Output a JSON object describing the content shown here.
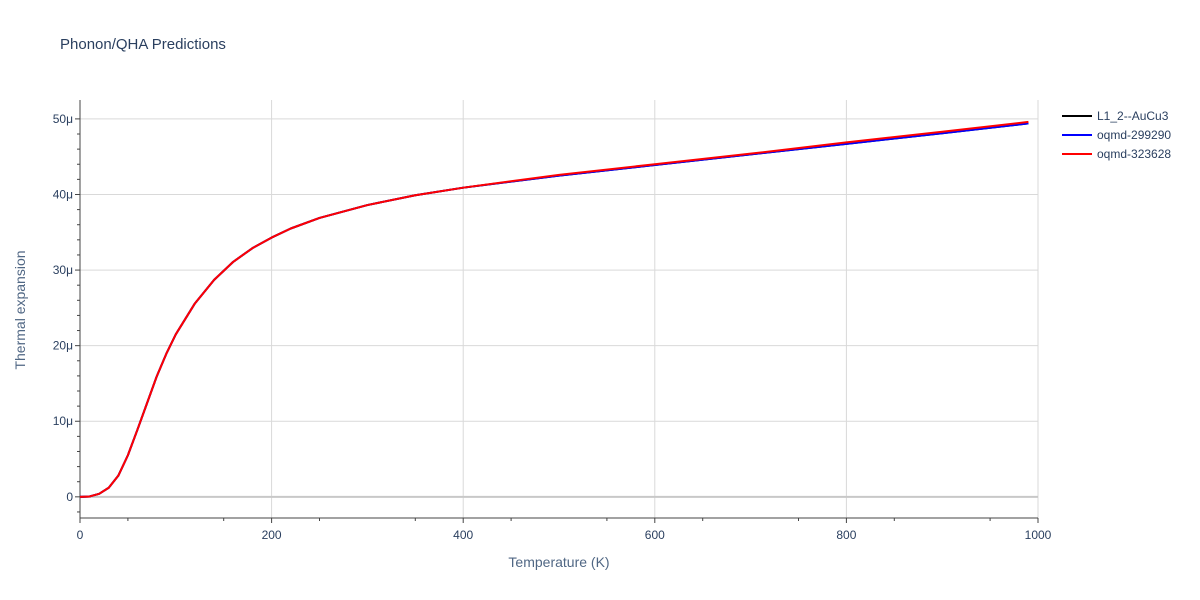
{
  "chart_data": {
    "type": "line",
    "title": "Phonon/QHA Predictions",
    "xlabel": "Temperature (K)",
    "ylabel": "Thermal expansion",
    "xlim": [
      0,
      1000
    ],
    "ylim": [
      -2.8e-06,
      5.25e-05
    ],
    "x_ticks": [
      0,
      200,
      400,
      600,
      800,
      1000
    ],
    "x_tick_labels": [
      "0",
      "200",
      "400",
      "600",
      "800",
      "1000"
    ],
    "y_ticks": [
      0,
      1e-05,
      2e-05,
      3e-05,
      4e-05,
      5e-05
    ],
    "y_tick_labels": [
      "0",
      "10μ",
      "20μ",
      "30μ",
      "40μ",
      "50μ"
    ],
    "grid": true,
    "legend_position": "top-right",
    "series": [
      {
        "name": "L1_2--AuCu3",
        "color": "#000000",
        "x": [
          0,
          10,
          20,
          30,
          40,
          50,
          60,
          70,
          80,
          90,
          100,
          120,
          140,
          160,
          180,
          200,
          220,
          250,
          300,
          350,
          400,
          500,
          600,
          700,
          800,
          900,
          990
        ],
        "y": [
          0,
          5e-08,
          4e-07,
          1.2e-06,
          2.8e-06,
          5.5e-06,
          8.9e-06,
          1.24e-05,
          1.59e-05,
          1.89e-05,
          2.15e-05,
          2.56e-05,
          2.87e-05,
          3.11e-05,
          3.29e-05,
          3.43e-05,
          3.55e-05,
          3.69e-05,
          3.86e-05,
          3.99e-05,
          4.09e-05,
          4.25e-05,
          4.39e-05,
          4.53e-05,
          4.67e-05,
          4.81e-05,
          4.94e-05
        ]
      },
      {
        "name": "oqmd-299290",
        "color": "#0000ff",
        "x": [
          0,
          10,
          20,
          30,
          40,
          50,
          60,
          70,
          80,
          90,
          100,
          120,
          140,
          160,
          180,
          200,
          220,
          250,
          300,
          350,
          400,
          500,
          600,
          700,
          800,
          900,
          990
        ],
        "y": [
          0,
          5e-08,
          4e-07,
          1.2e-06,
          2.8e-06,
          5.5e-06,
          8.9e-06,
          1.24e-05,
          1.59e-05,
          1.89e-05,
          2.15e-05,
          2.56e-05,
          2.87e-05,
          3.11e-05,
          3.29e-05,
          3.43e-05,
          3.55e-05,
          3.69e-05,
          3.86e-05,
          3.99e-05,
          4.09e-05,
          4.25e-05,
          4.39e-05,
          4.53e-05,
          4.67e-05,
          4.81e-05,
          4.94e-05
        ]
      },
      {
        "name": "oqmd-323628",
        "color": "#ff0000",
        "x": [
          0,
          10,
          20,
          30,
          40,
          50,
          60,
          70,
          80,
          90,
          100,
          120,
          140,
          160,
          180,
          200,
          220,
          250,
          300,
          350,
          400,
          500,
          600,
          700,
          800,
          900,
          990
        ],
        "y": [
          0,
          5e-08,
          4e-07,
          1.2e-06,
          2.8e-06,
          5.5e-06,
          8.9e-06,
          1.24e-05,
          1.59e-05,
          1.89e-05,
          2.15e-05,
          2.56e-05,
          2.87e-05,
          3.11e-05,
          3.29e-05,
          3.43e-05,
          3.55e-05,
          3.69e-05,
          3.86e-05,
          3.99e-05,
          4.09e-05,
          4.26e-05,
          4.4e-05,
          4.54e-05,
          4.69e-05,
          4.83e-05,
          4.96e-05
        ]
      }
    ]
  }
}
